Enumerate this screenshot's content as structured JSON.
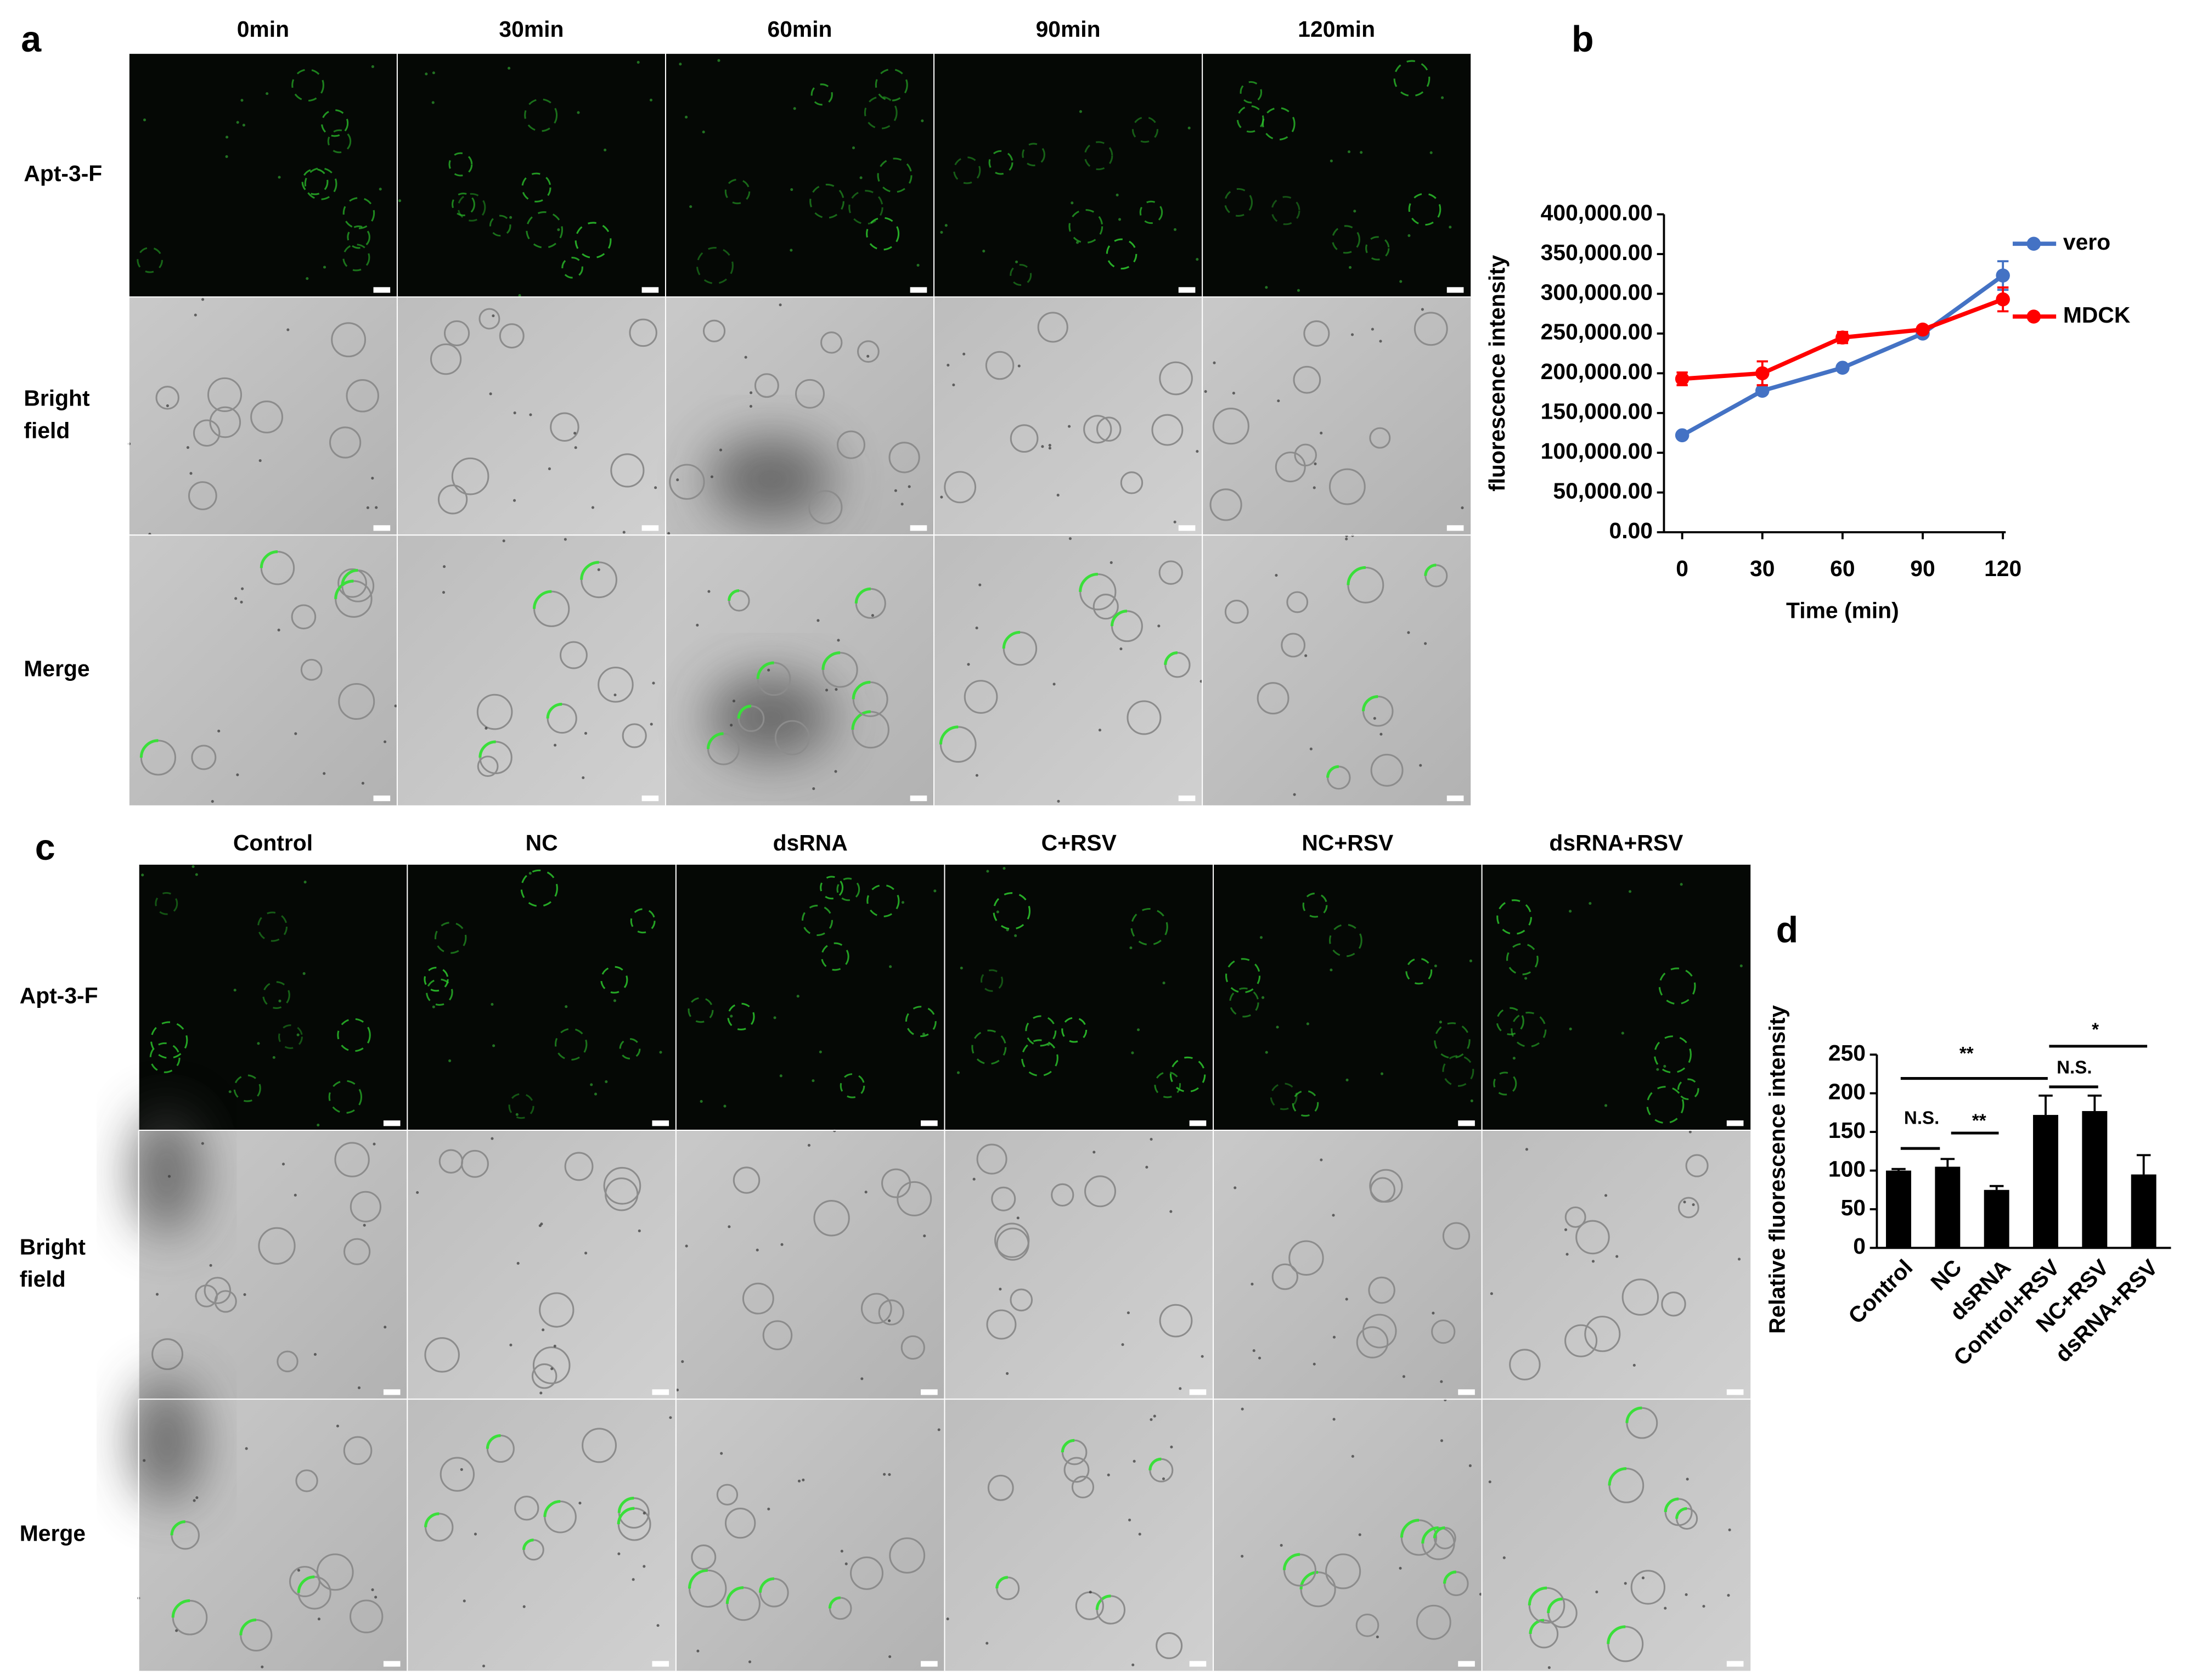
{
  "panel_labels": [
    "a",
    "b",
    "c",
    "d"
  ],
  "figure_a": {
    "columns": [
      "0min",
      "30min",
      "60min",
      "90min",
      "120min"
    ],
    "rows": [
      [
        "Apt-3-F"
      ],
      [
        "Bright",
        "field"
      ],
      [
        "Merge"
      ]
    ]
  },
  "figure_c": {
    "columns": [
      "Control",
      "NC",
      "dsRNA",
      "C+RSV",
      "NC+RSV",
      "dsRNA+RSV"
    ],
    "rows": [
      [
        "Apt-3-F"
      ],
      [
        "Bright",
        "field"
      ],
      [
        "Merge"
      ]
    ]
  },
  "chart_data": [
    {
      "type": "line",
      "xlabel": "Time (min)",
      "ylabel": "fluorescence intensity",
      "x": [
        0,
        30,
        60,
        90,
        120
      ],
      "xlim": [
        0,
        120
      ],
      "xticks": [
        0,
        30,
        60,
        90,
        120
      ],
      "ylim": [
        0,
        400000
      ],
      "yticks": [
        {
          "value": 0,
          "label": "0.00"
        },
        {
          "value": 50000,
          "label": "50,000.00"
        },
        {
          "value": 100000,
          "label": "100,000.00"
        },
        {
          "value": 150000,
          "label": "150,000.00"
        },
        {
          "value": 200000,
          "label": "200,000.00"
        },
        {
          "value": 250000,
          "label": "250,000.00"
        },
        {
          "value": 300000,
          "label": "300,000.00"
        },
        {
          "value": 350000,
          "label": "350,000.00"
        },
        {
          "value": 400000,
          "label": "400,000.00"
        }
      ],
      "legend": "right",
      "series": [
        {
          "name": "vero",
          "color": "#4472c4",
          "values": [
            122000,
            178000,
            207000,
            250000,
            323000
          ],
          "errors": [
            3000,
            4000,
            3000,
            3000,
            18000
          ]
        },
        {
          "name": "MDCK",
          "color": "#ff0000",
          "values": [
            193000,
            200000,
            245000,
            255000,
            293000
          ],
          "errors": [
            8000,
            15000,
            7000,
            4000,
            15000
          ]
        }
      ]
    },
    {
      "type": "bar",
      "ylabel": "Relative fluorescence intensity",
      "categories": [
        "Control",
        "NC",
        "dsRNA",
        "Control+RSV",
        "NC+RSV",
        "dsRNA+RSV"
      ],
      "values": [
        100,
        105,
        75,
        172,
        177,
        95
      ],
      "errors": [
        2,
        10,
        5,
        25,
        20,
        25
      ],
      "color": "#000000",
      "ylim": [
        0,
        250
      ],
      "yticks": [
        0,
        50,
        100,
        150,
        200,
        250
      ],
      "annotations": [
        "N.S.",
        "**",
        "**",
        "N.S.",
        "*"
      ]
    }
  ]
}
